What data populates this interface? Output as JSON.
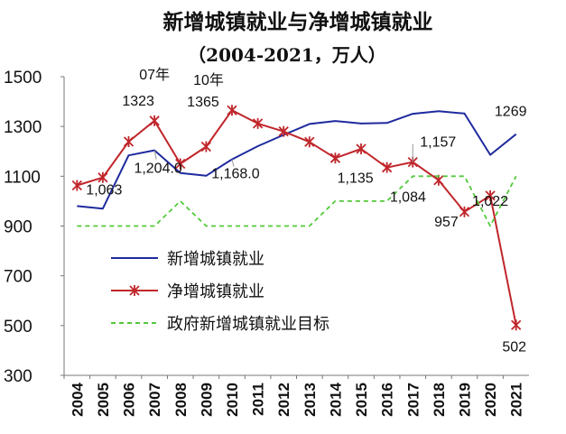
{
  "chart_data": {
    "type": "line",
    "title": "新增城镇就业与净增城镇就业",
    "subtitle": "（2004-2021，万人）",
    "xlabel": "",
    "ylabel": "",
    "ylim": [
      300,
      1500
    ],
    "yticks": [
      300,
      500,
      700,
      900,
      1100,
      1300,
      1500
    ],
    "categories": [
      "2004",
      "2005",
      "2006",
      "2007",
      "2008",
      "2009",
      "2010",
      "2011",
      "2012",
      "2013",
      "2014",
      "2015",
      "2016",
      "2017",
      "2018",
      "2019",
      "2020",
      "2021"
    ],
    "grid": false,
    "legend_position": "center-left",
    "series": [
      {
        "name": "新增城镇就业",
        "color": "#1f2a9e",
        "style": "solid",
        "marker": "none",
        "values": [
          980,
          970,
          1184,
          1204,
          1113,
          1102,
          1168,
          1221,
          1266,
          1310,
          1322,
          1312,
          1314,
          1351,
          1361,
          1352,
          1186,
          1269
        ]
      },
      {
        "name": "净增城镇就业",
        "color": "#c0262b",
        "style": "solid",
        "marker": "star",
        "values": [
          1063,
          1095,
          1239,
          1323,
          1150,
          1219,
          1365,
          1312,
          1280,
          1238,
          1173,
          1210,
          1135,
          1157,
          1084,
          957,
          1022,
          502
        ]
      },
      {
        "name": "政府新增城镇就业目标",
        "color": "#52c93a",
        "style": "dashed",
        "marker": "none",
        "values": [
          900,
          900,
          900,
          900,
          1000,
          900,
          900,
          900,
          900,
          900,
          1000,
          1000,
          1000,
          1100,
          1100,
          1100,
          900,
          1100
        ]
      }
    ],
    "annotations": [
      {
        "text": "1,063",
        "series": 1,
        "index": 0,
        "color": "#c0262b"
      },
      {
        "text": "07年",
        "series": 1,
        "index": 3,
        "color": "#c0262b"
      },
      {
        "text": "1323",
        "series": 1,
        "index": 3,
        "color": "#c0262b"
      },
      {
        "text": "10年",
        "series": 1,
        "index": 6,
        "color": "#c0262b"
      },
      {
        "text": "1365",
        "series": 1,
        "index": 6,
        "color": "#c0262b"
      },
      {
        "text": "1,204.0",
        "series": 0,
        "index": 3,
        "color": "#1f2a9e"
      },
      {
        "text": "1,168.0",
        "series": 0,
        "index": 6,
        "color": "#1f2a9e"
      },
      {
        "text": "1269",
        "series": 0,
        "index": 17,
        "color": "#1f2a9e"
      },
      {
        "text": "1,135",
        "series": 1,
        "index": 12,
        "color": "#c0262b"
      },
      {
        "text": "1,157",
        "series": 1,
        "index": 13,
        "color": "#c0262b"
      },
      {
        "text": "1,084",
        "series": 1,
        "index": 14,
        "color": "#c0262b"
      },
      {
        "text": "957",
        "series": 1,
        "index": 15,
        "color": "#c0262b"
      },
      {
        "text": "1,022",
        "series": 1,
        "index": 16,
        "color": "#c0262b"
      },
      {
        "text": "502",
        "series": 1,
        "index": 17,
        "color": "#c0262b"
      }
    ]
  }
}
